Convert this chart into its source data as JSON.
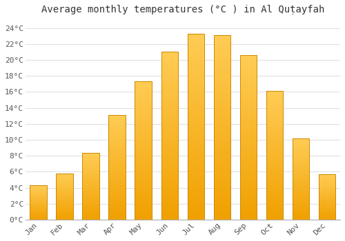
{
  "title": "Average monthly temperatures (°C ) in Al Quṭayfah",
  "months": [
    "Jan",
    "Feb",
    "Mar",
    "Apr",
    "May",
    "Jun",
    "Jul",
    "Aug",
    "Sep",
    "Oct",
    "Nov",
    "Dec"
  ],
  "values": [
    4.3,
    5.8,
    8.4,
    13.1,
    17.3,
    21.0,
    23.3,
    23.1,
    20.6,
    16.1,
    10.2,
    5.7
  ],
  "bar_color_light": "#FFCC44",
  "bar_color_dark": "#F0A000",
  "bar_border_color": "#CC8800",
  "background_color": "#FFFFFF",
  "plot_bg_color": "#FFFFFF",
  "ylim": [
    0,
    25
  ],
  "yticks": [
    0,
    2,
    4,
    6,
    8,
    10,
    12,
    14,
    16,
    18,
    20,
    22,
    24
  ],
  "ytick_labels": [
    "0°C",
    "2°C",
    "4°C",
    "6°C",
    "8°C",
    "10°C",
    "12°C",
    "14°C",
    "16°C",
    "18°C",
    "20°C",
    "22°C",
    "24°C"
  ],
  "title_fontsize": 10,
  "tick_fontsize": 8,
  "grid_color": "#DDDDDD",
  "spine_color": "#AAAAAA"
}
